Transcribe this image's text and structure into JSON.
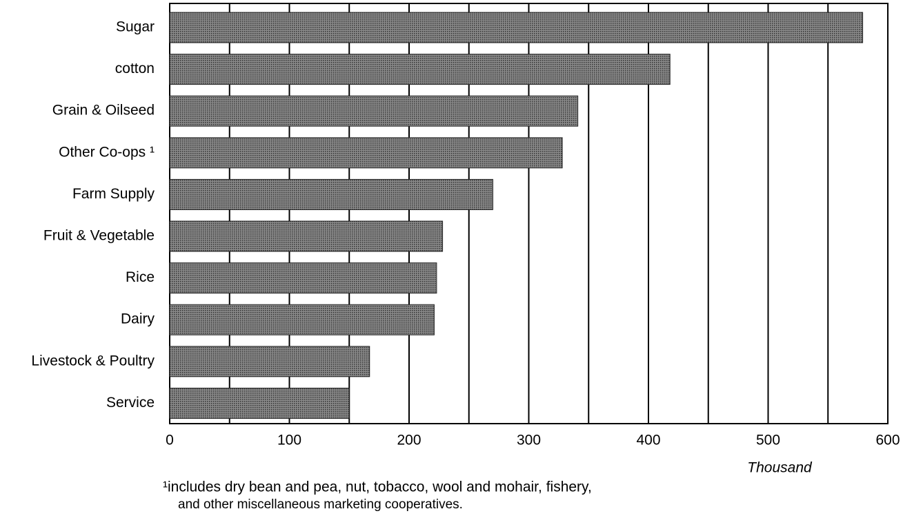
{
  "chart_data": {
    "type": "hbar",
    "categories": [
      "Sugar",
      "cotton",
      "Grain & Oilseed",
      "Other Co-ops ¹",
      "Farm Supply",
      "Fruit & Vegetable",
      "Rice",
      "Dairy",
      "Livestock & Poultry",
      "Service"
    ],
    "values": [
      579,
      418,
      341,
      328,
      270,
      228,
      223,
      221,
      167,
      150
    ],
    "color": "#555555",
    "xlabel": "Thousand",
    "xlim": [
      0,
      600
    ],
    "xticks": [
      0,
      100,
      200,
      300,
      400,
      500,
      600
    ],
    "minor_xticks": [
      50,
      150,
      250,
      350,
      450,
      550
    ],
    "grid": true,
    "footnote": [
      "¹includes dry bean and pea, nut, tobacco, wool and mohair, fishery,",
      "and other miscellaneous marketing cooperatives."
    ]
  }
}
